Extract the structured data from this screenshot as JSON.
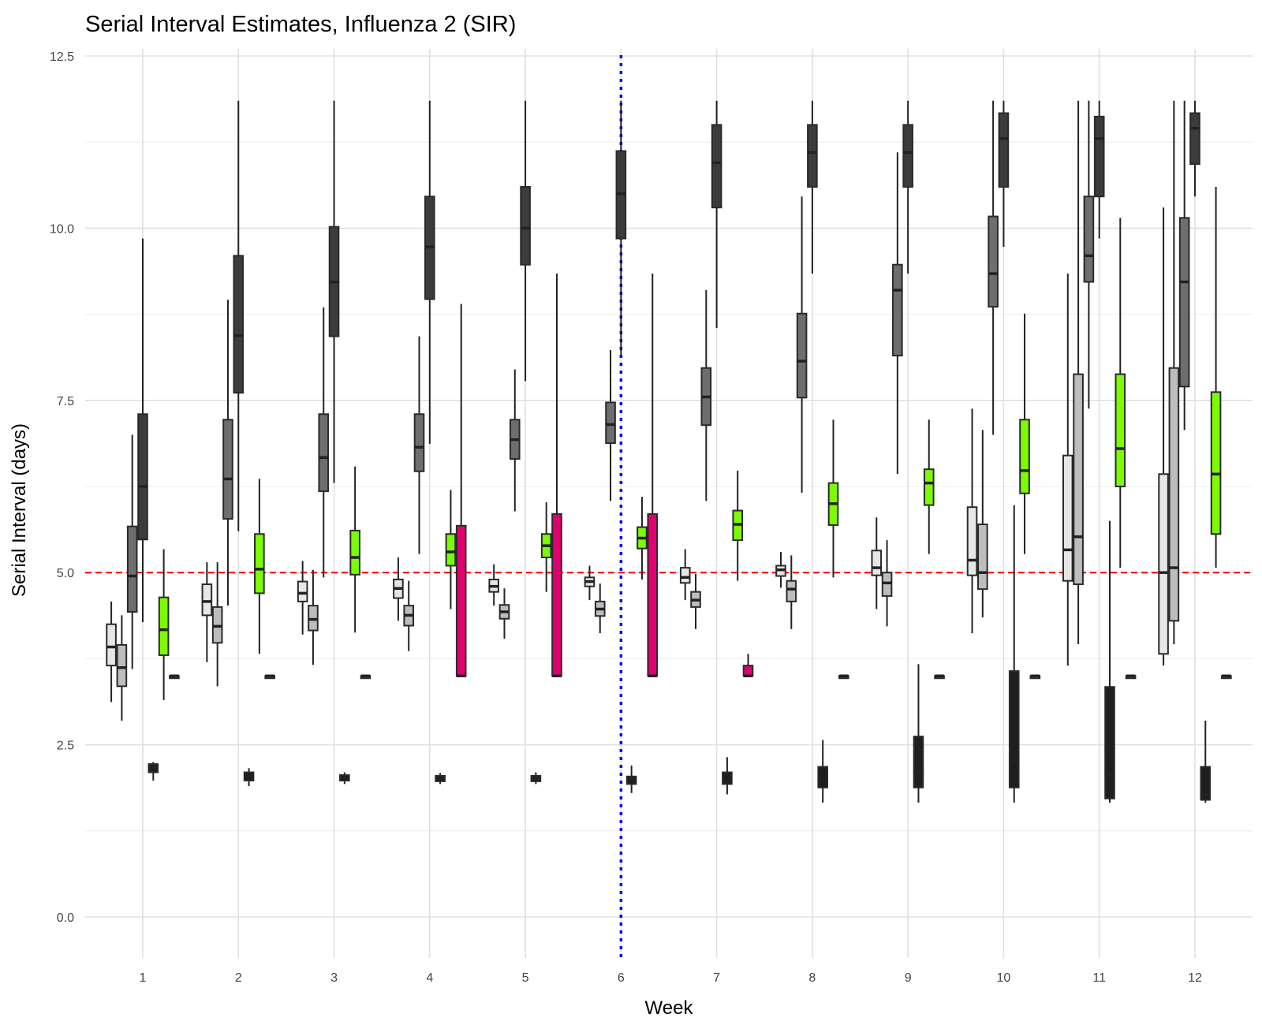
{
  "chart_data": {
    "type": "boxplot",
    "title": "Serial Interval Estimates, Influenza 2 (SIR)",
    "xlabel": "Week",
    "ylabel": "Serial Interval (days)",
    "ylim": [
      -0.55,
      12.5
    ],
    "yticks": [
      0.0,
      2.5,
      5.0,
      7.5,
      10.0,
      12.5
    ],
    "ytick_labels": [
      "0.0",
      "2.5",
      "5.0",
      "7.5",
      "10.0",
      "12.5"
    ],
    "weeks": [
      1,
      2,
      3,
      4,
      5,
      6,
      7,
      8,
      9,
      10,
      11,
      12
    ],
    "week_labels": [
      "1",
      "2",
      "3",
      "4",
      "5",
      "6",
      "7",
      "8",
      "9",
      "10",
      "11",
      "12"
    ],
    "grid": true,
    "legend": "none",
    "reference_lines": [
      {
        "axis": "y",
        "value": 5.0,
        "color": "#ff0000",
        "style": "dashed"
      },
      {
        "axis": "x",
        "value": 6,
        "color": "#0000ff",
        "style": "dotted"
      }
    ],
    "method_colors": [
      "#e6e6e6",
      "#bdbdbd",
      "#6e6e6e",
      "#3c3c3c",
      "#1e1e1e",
      "#7cfc00",
      "#e0006f"
    ],
    "boxes": [
      {
        "week": 1,
        "slot": 0,
        "color": "#e6e6e6",
        "min": 3.12,
        "q1": 3.65,
        "median": 3.92,
        "q3": 4.25,
        "max": 4.58
      },
      {
        "week": 1,
        "slot": 1,
        "color": "#bdbdbd",
        "min": 2.85,
        "q1": 3.35,
        "median": 3.62,
        "q3": 3.95,
        "max": 4.38
      },
      {
        "week": 1,
        "slot": 2,
        "color": "#6e6e6e",
        "min": 3.6,
        "q1": 4.43,
        "median": 4.95,
        "q3": 5.67,
        "max": 7.0
      },
      {
        "week": 1,
        "slot": 3,
        "color": "#3c3c3c",
        "min": 4.28,
        "q1": 5.48,
        "median": 6.25,
        "q3": 7.3,
        "max": 9.85
      },
      {
        "week": 1,
        "slot": 4,
        "color": "#1e1e1e",
        "min": 1.98,
        "q1": 2.1,
        "median": 2.17,
        "q3": 2.22,
        "max": 2.25
      },
      {
        "week": 1,
        "slot": 5,
        "color": "#7cfc00",
        "min": 3.15,
        "q1": 3.8,
        "median": 4.17,
        "q3": 4.64,
        "max": 5.34
      },
      {
        "week": 1,
        "slot": 6,
        "color": "#e0006f",
        "min": 3.5,
        "q1": 3.5,
        "median": 3.5,
        "q3": 3.5,
        "max": 3.5
      },
      {
        "week": 2,
        "slot": 0,
        "color": "#e6e6e6",
        "min": 3.7,
        "q1": 4.38,
        "median": 4.58,
        "q3": 4.83,
        "max": 5.15
      },
      {
        "week": 2,
        "slot": 1,
        "color": "#bdbdbd",
        "min": 3.35,
        "q1": 3.98,
        "median": 4.22,
        "q3": 4.5,
        "max": 5.15
      },
      {
        "week": 2,
        "slot": 2,
        "color": "#6e6e6e",
        "min": 4.52,
        "q1": 5.78,
        "median": 6.36,
        "q3": 7.22,
        "max": 8.96
      },
      {
        "week": 2,
        "slot": 3,
        "color": "#3c3c3c",
        "min": 5.6,
        "q1": 7.61,
        "median": 8.44,
        "q3": 9.6,
        "max": 11.85
      },
      {
        "week": 2,
        "slot": 4,
        "color": "#1e1e1e",
        "min": 1.9,
        "q1": 1.98,
        "median": 2.04,
        "q3": 2.1,
        "max": 2.16
      },
      {
        "week": 2,
        "slot": 5,
        "color": "#7cfc00",
        "min": 3.82,
        "q1": 4.7,
        "median": 5.05,
        "q3": 5.56,
        "max": 6.36
      },
      {
        "week": 2,
        "slot": 6,
        "color": "#e0006f",
        "min": 3.5,
        "q1": 3.5,
        "median": 3.5,
        "q3": 3.5,
        "max": 3.5
      },
      {
        "week": 3,
        "slot": 0,
        "color": "#e6e6e6",
        "min": 4.1,
        "q1": 4.58,
        "median": 4.7,
        "q3": 4.87,
        "max": 5.17
      },
      {
        "week": 3,
        "slot": 1,
        "color": "#bdbdbd",
        "min": 3.66,
        "q1": 4.16,
        "median": 4.32,
        "q3": 4.52,
        "max": 5.04
      },
      {
        "week": 3,
        "slot": 2,
        "color": "#6e6e6e",
        "min": 4.93,
        "q1": 6.18,
        "median": 6.67,
        "q3": 7.3,
        "max": 8.85
      },
      {
        "week": 3,
        "slot": 3,
        "color": "#3c3c3c",
        "min": 6.3,
        "q1": 8.43,
        "median": 9.22,
        "q3": 10.02,
        "max": 11.85
      },
      {
        "week": 3,
        "slot": 4,
        "color": "#1e1e1e",
        "min": 1.93,
        "q1": 1.98,
        "median": 2.02,
        "q3": 2.06,
        "max": 2.1
      },
      {
        "week": 3,
        "slot": 5,
        "color": "#7cfc00",
        "min": 4.13,
        "q1": 4.97,
        "median": 5.22,
        "q3": 5.61,
        "max": 6.54
      },
      {
        "week": 3,
        "slot": 6,
        "color": "#e0006f",
        "min": 3.5,
        "q1": 3.5,
        "median": 3.5,
        "q3": 3.5,
        "max": 3.5
      },
      {
        "week": 4,
        "slot": 0,
        "color": "#e6e6e6",
        "min": 4.3,
        "q1": 4.63,
        "median": 4.77,
        "q3": 4.9,
        "max": 5.22
      },
      {
        "week": 4,
        "slot": 1,
        "color": "#bdbdbd",
        "min": 3.86,
        "q1": 4.23,
        "median": 4.38,
        "q3": 4.52,
        "max": 4.88
      },
      {
        "week": 4,
        "slot": 2,
        "color": "#6e6e6e",
        "min": 5.27,
        "q1": 6.47,
        "median": 6.82,
        "q3": 7.3,
        "max": 8.43
      },
      {
        "week": 4,
        "slot": 3,
        "color": "#3c3c3c",
        "min": 6.87,
        "q1": 8.97,
        "median": 9.73,
        "q3": 10.46,
        "max": 11.85
      },
      {
        "week": 4,
        "slot": 4,
        "color": "#1e1e1e",
        "min": 1.93,
        "q1": 1.97,
        "median": 2.01,
        "q3": 2.05,
        "max": 2.09
      },
      {
        "week": 4,
        "slot": 5,
        "color": "#7cfc00",
        "min": 4.47,
        "q1": 5.1,
        "median": 5.3,
        "q3": 5.56,
        "max": 6.2
      },
      {
        "week": 4,
        "slot": 6,
        "color": "#e0006f",
        "min": 3.5,
        "q1": 3.5,
        "median": 3.5,
        "q3": 5.68,
        "max": 8.9
      },
      {
        "week": 5,
        "slot": 0,
        "color": "#e6e6e6",
        "min": 4.52,
        "q1": 4.72,
        "median": 4.8,
        "q3": 4.9,
        "max": 5.12
      },
      {
        "week": 5,
        "slot": 1,
        "color": "#bdbdbd",
        "min": 4.04,
        "q1": 4.33,
        "median": 4.43,
        "q3": 4.53,
        "max": 4.77
      },
      {
        "week": 5,
        "slot": 2,
        "color": "#6e6e6e",
        "min": 5.89,
        "q1": 6.65,
        "median": 6.93,
        "q3": 7.22,
        "max": 7.95
      },
      {
        "week": 5,
        "slot": 3,
        "color": "#3c3c3c",
        "min": 7.78,
        "q1": 9.47,
        "median": 10.0,
        "q3": 10.6,
        "max": 11.85
      },
      {
        "week": 5,
        "slot": 4,
        "color": "#1e1e1e",
        "min": 1.93,
        "q1": 1.97,
        "median": 2.01,
        "q3": 2.05,
        "max": 2.1
      },
      {
        "week": 5,
        "slot": 5,
        "color": "#7cfc00",
        "min": 4.72,
        "q1": 5.22,
        "median": 5.39,
        "q3": 5.56,
        "max": 6.02
      },
      {
        "week": 5,
        "slot": 6,
        "color": "#e0006f",
        "min": 3.5,
        "q1": 3.5,
        "median": 3.5,
        "q3": 5.85,
        "max": 9.34
      },
      {
        "week": 6,
        "slot": 0,
        "color": "#e6e6e6",
        "min": 4.6,
        "q1": 4.8,
        "median": 4.87,
        "q3": 4.93,
        "max": 5.1
      },
      {
        "week": 6,
        "slot": 1,
        "color": "#bdbdbd",
        "min": 4.12,
        "q1": 4.37,
        "median": 4.47,
        "q3": 4.58,
        "max": 4.84
      },
      {
        "week": 6,
        "slot": 2,
        "color": "#6e6e6e",
        "min": 6.04,
        "q1": 6.88,
        "median": 7.15,
        "q3": 7.47,
        "max": 8.23
      },
      {
        "week": 6,
        "slot": 3,
        "color": "#3c3c3c",
        "min": 8.15,
        "q1": 9.85,
        "median": 10.5,
        "q3": 11.12,
        "max": 11.85
      },
      {
        "week": 6,
        "slot": 4,
        "color": "#1e1e1e",
        "min": 1.8,
        "q1": 1.93,
        "median": 2.0,
        "q3": 2.04,
        "max": 2.2
      },
      {
        "week": 6,
        "slot": 5,
        "color": "#7cfc00",
        "min": 4.9,
        "q1": 5.35,
        "median": 5.5,
        "q3": 5.66,
        "max": 6.1
      },
      {
        "week": 6,
        "slot": 6,
        "color": "#e0006f",
        "min": 3.5,
        "q1": 3.5,
        "median": 3.5,
        "q3": 5.85,
        "max": 9.34
      },
      {
        "week": 7,
        "slot": 0,
        "color": "#e6e6e6",
        "min": 4.6,
        "q1": 4.85,
        "median": 4.93,
        "q3": 5.07,
        "max": 5.34
      },
      {
        "week": 7,
        "slot": 1,
        "color": "#bdbdbd",
        "min": 4.18,
        "q1": 4.5,
        "median": 4.6,
        "q3": 4.72,
        "max": 4.98
      },
      {
        "week": 7,
        "slot": 2,
        "color": "#6e6e6e",
        "min": 6.04,
        "q1": 7.14,
        "median": 7.55,
        "q3": 7.97,
        "max": 9.1
      },
      {
        "week": 7,
        "slot": 3,
        "color": "#3c3c3c",
        "min": 8.55,
        "q1": 10.3,
        "median": 10.95,
        "q3": 11.5,
        "max": 11.85
      },
      {
        "week": 7,
        "slot": 4,
        "color": "#1e1e1e",
        "min": 1.78,
        "q1": 1.93,
        "median": 1.98,
        "q3": 2.1,
        "max": 2.32
      },
      {
        "week": 7,
        "slot": 5,
        "color": "#7cfc00",
        "min": 4.88,
        "q1": 5.47,
        "median": 5.7,
        "q3": 5.9,
        "max": 6.48
      },
      {
        "week": 7,
        "slot": 6,
        "color": "#e0006f",
        "min": 3.5,
        "q1": 3.5,
        "median": 3.5,
        "q3": 3.65,
        "max": 3.82
      },
      {
        "week": 8,
        "slot": 0,
        "color": "#e6e6e6",
        "min": 4.78,
        "q1": 4.95,
        "median": 5.04,
        "q3": 5.1,
        "max": 5.3
      },
      {
        "week": 8,
        "slot": 1,
        "color": "#bdbdbd",
        "min": 4.18,
        "q1": 4.58,
        "median": 4.76,
        "q3": 4.88,
        "max": 5.25
      },
      {
        "week": 8,
        "slot": 2,
        "color": "#6e6e6e",
        "min": 6.16,
        "q1": 7.54,
        "median": 8.07,
        "q3": 8.76,
        "max": 10.46
      },
      {
        "week": 8,
        "slot": 3,
        "color": "#3c3c3c",
        "min": 9.34,
        "q1": 10.6,
        "median": 11.1,
        "q3": 11.5,
        "max": 11.85
      },
      {
        "week": 8,
        "slot": 4,
        "color": "#1e1e1e",
        "min": 1.66,
        "q1": 1.88,
        "median": 2.0,
        "q3": 2.18,
        "max": 2.57
      },
      {
        "week": 8,
        "slot": 5,
        "color": "#7cfc00",
        "min": 4.93,
        "q1": 5.69,
        "median": 6.0,
        "q3": 6.3,
        "max": 7.22
      },
      {
        "week": 8,
        "slot": 6,
        "color": "#e0006f",
        "min": 3.5,
        "q1": 3.5,
        "median": 3.5,
        "q3": 3.5,
        "max": 3.5
      },
      {
        "week": 9,
        "slot": 0,
        "color": "#e6e6e6",
        "min": 4.47,
        "q1": 4.96,
        "median": 5.07,
        "q3": 5.32,
        "max": 5.8
      },
      {
        "week": 9,
        "slot": 1,
        "color": "#bdbdbd",
        "min": 4.22,
        "q1": 4.66,
        "median": 4.85,
        "q3": 5.0,
        "max": 5.47
      },
      {
        "week": 9,
        "slot": 2,
        "color": "#6e6e6e",
        "min": 6.43,
        "q1": 8.15,
        "median": 9.1,
        "q3": 9.47,
        "max": 11.1
      },
      {
        "week": 9,
        "slot": 3,
        "color": "#3c3c3c",
        "min": 9.34,
        "q1": 10.6,
        "median": 11.1,
        "q3": 11.5,
        "max": 11.85
      },
      {
        "week": 9,
        "slot": 4,
        "color": "#1e1e1e",
        "min": 1.66,
        "q1": 1.88,
        "median": 2.1,
        "q3": 2.62,
        "max": 3.67
      },
      {
        "week": 9,
        "slot": 5,
        "color": "#7cfc00",
        "min": 5.27,
        "q1": 5.98,
        "median": 6.3,
        "q3": 6.5,
        "max": 7.22
      },
      {
        "week": 9,
        "slot": 6,
        "color": "#e0006f",
        "min": 3.5,
        "q1": 3.5,
        "median": 3.5,
        "q3": 3.5,
        "max": 3.5
      },
      {
        "week": 10,
        "slot": 0,
        "color": "#e6e6e6",
        "min": 4.12,
        "q1": 4.96,
        "median": 5.18,
        "q3": 5.95,
        "max": 7.38
      },
      {
        "week": 10,
        "slot": 1,
        "color": "#bdbdbd",
        "min": 4.35,
        "q1": 4.76,
        "median": 5.0,
        "q3": 5.7,
        "max": 7.07
      },
      {
        "week": 10,
        "slot": 2,
        "color": "#6e6e6e",
        "min": 7.0,
        "q1": 8.86,
        "median": 9.34,
        "q3": 10.17,
        "max": 11.85
      },
      {
        "week": 10,
        "slot": 3,
        "color": "#3c3c3c",
        "min": 9.73,
        "q1": 10.6,
        "median": 11.3,
        "q3": 11.67,
        "max": 11.85
      },
      {
        "week": 10,
        "slot": 4,
        "color": "#1e1e1e",
        "min": 1.66,
        "q1": 1.88,
        "median": 2.27,
        "q3": 3.57,
        "max": 5.98
      },
      {
        "week": 10,
        "slot": 5,
        "color": "#7cfc00",
        "min": 5.27,
        "q1": 6.15,
        "median": 6.48,
        "q3": 7.22,
        "max": 8.76
      },
      {
        "week": 10,
        "slot": 6,
        "color": "#e0006f",
        "min": 3.5,
        "q1": 3.5,
        "median": 3.5,
        "q3": 3.5,
        "max": 3.5
      },
      {
        "week": 11,
        "slot": 0,
        "color": "#e6e6e6",
        "min": 3.65,
        "q1": 4.88,
        "median": 5.33,
        "q3": 6.7,
        "max": 9.34
      },
      {
        "week": 11,
        "slot": 1,
        "color": "#bdbdbd",
        "min": 3.96,
        "q1": 4.83,
        "median": 5.52,
        "q3": 7.88,
        "max": 11.85
      },
      {
        "week": 11,
        "slot": 2,
        "color": "#6e6e6e",
        "min": 7.38,
        "q1": 9.22,
        "median": 9.6,
        "q3": 10.46,
        "max": 11.85
      },
      {
        "week": 11,
        "slot": 3,
        "color": "#3c3c3c",
        "min": 9.85,
        "q1": 10.46,
        "median": 11.3,
        "q3": 11.62,
        "max": 11.85
      },
      {
        "week": 11,
        "slot": 4,
        "color": "#1e1e1e",
        "min": 1.66,
        "q1": 1.72,
        "median": 2.06,
        "q3": 3.34,
        "max": 5.75
      },
      {
        "week": 11,
        "slot": 5,
        "color": "#7cfc00",
        "min": 5.07,
        "q1": 6.25,
        "median": 6.8,
        "q3": 7.88,
        "max": 10.15
      },
      {
        "week": 11,
        "slot": 6,
        "color": "#e0006f",
        "min": 3.5,
        "q1": 3.5,
        "median": 3.5,
        "q3": 3.5,
        "max": 3.5
      },
      {
        "week": 12,
        "slot": 0,
        "color": "#e6e6e6",
        "min": 3.65,
        "q1": 3.82,
        "median": 5.0,
        "q3": 6.43,
        "max": 10.3
      },
      {
        "week": 12,
        "slot": 1,
        "color": "#bdbdbd",
        "min": 3.96,
        "q1": 4.3,
        "median": 5.07,
        "q3": 7.97,
        "max": 11.85
      },
      {
        "week": 12,
        "slot": 2,
        "color": "#6e6e6e",
        "min": 7.07,
        "q1": 7.7,
        "median": 9.22,
        "q3": 10.15,
        "max": 11.85
      },
      {
        "week": 12,
        "slot": 3,
        "color": "#3c3c3c",
        "min": 10.46,
        "q1": 10.93,
        "median": 11.45,
        "q3": 11.67,
        "max": 11.85
      },
      {
        "week": 12,
        "slot": 4,
        "color": "#1e1e1e",
        "min": 1.66,
        "q1": 1.7,
        "median": 1.78,
        "q3": 2.18,
        "max": 2.85
      },
      {
        "week": 12,
        "slot": 5,
        "color": "#7cfc00",
        "min": 5.07,
        "q1": 5.56,
        "median": 6.43,
        "q3": 7.62,
        "max": 10.6
      },
      {
        "week": 12,
        "slot": 6,
        "color": "#e0006f",
        "min": 3.5,
        "q1": 3.5,
        "median": 3.5,
        "q3": 3.5,
        "max": 3.5
      }
    ]
  }
}
